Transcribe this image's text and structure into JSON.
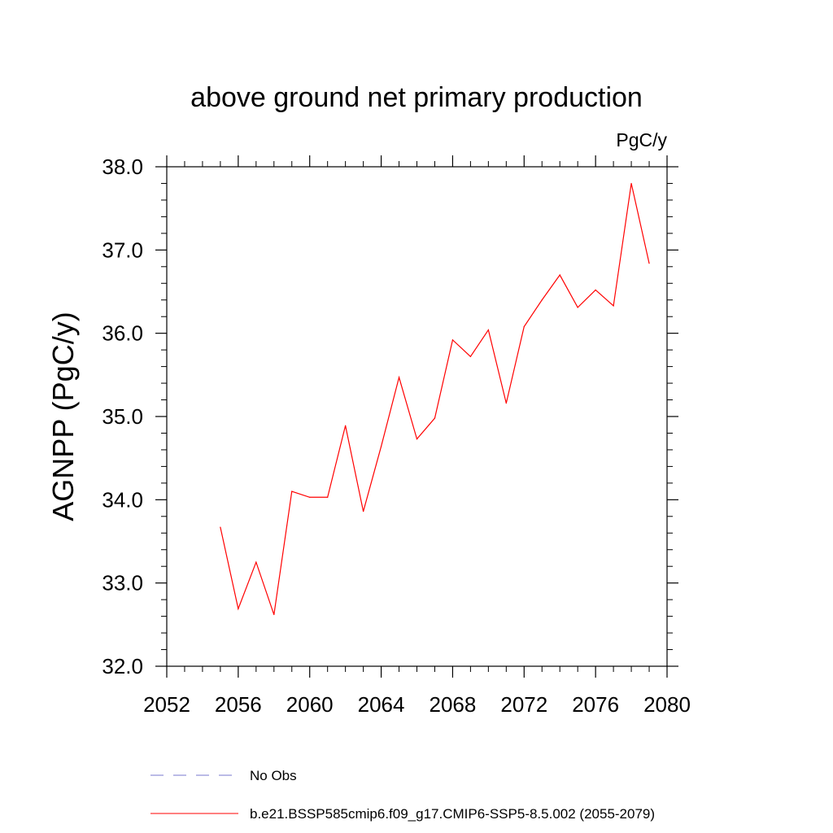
{
  "chart_data": {
    "type": "line",
    "title": "above ground net primary production",
    "units": "PgC/y",
    "ylabel": "AGNPP  (PgC/y)",
    "xlabel": "",
    "xlim": [
      2052,
      2080
    ],
    "ylim": [
      32.0,
      38.0
    ],
    "xticks": [
      "2052",
      "2056",
      "2060",
      "2064",
      "2068",
      "2072",
      "2076",
      "2080"
    ],
    "yticks": [
      "32.0",
      "33.0",
      "34.0",
      "35.0",
      "36.0",
      "37.0",
      "38.0"
    ],
    "grid": false,
    "legend_position": "bottom",
    "legend": [
      {
        "label": "No Obs",
        "style": "dashed",
        "color": "#7777cc"
      },
      {
        "label": "b.e21.BSSP585cmip6.f09_g17.CMIP6-SSP5-8.5.002 (2055-2079)",
        "style": "solid",
        "color": "#ff0000"
      }
    ],
    "series": [
      {
        "name": "b.e21.BSSP585cmip6.f09_g17.CMIP6-SSP5-8.5.002 (2055-2079)",
        "color": "#ff0000",
        "x": [
          2055,
          2056,
          2057,
          2058,
          2059,
          2060,
          2061,
          2062,
          2063,
          2064,
          2065,
          2066,
          2067,
          2068,
          2069,
          2070,
          2071,
          2072,
          2073,
          2074,
          2075,
          2076,
          2077,
          2078,
          2079
        ],
        "y": [
          33.67,
          32.69,
          33.25,
          32.62,
          34.1,
          34.03,
          34.03,
          34.89,
          33.86,
          34.64,
          35.47,
          34.73,
          34.98,
          35.92,
          35.72,
          36.04,
          35.16,
          36.08,
          36.4,
          36.7,
          36.31,
          36.52,
          36.33,
          37.8,
          36.84
        ]
      }
    ]
  }
}
